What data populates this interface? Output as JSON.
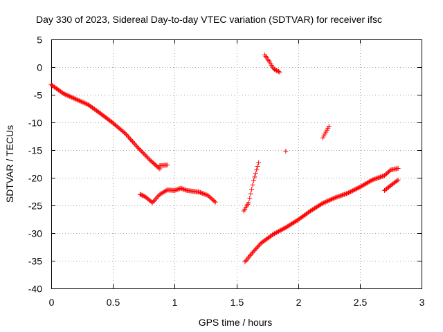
{
  "chart_data": {
    "type": "scatter",
    "title": "Day 330 of 2023, Sidereal Day-to-day VTEC variation (SDTVAR) for receiver ifsc",
    "xlabel": "GPS time / hours",
    "ylabel": "SDTVAR / TECUs",
    "xlim": [
      0,
      3
    ],
    "ylim": [
      -40,
      5
    ],
    "xticks": [
      "0",
      "0.5",
      "1",
      "1.5",
      "2",
      "2.5",
      "3"
    ],
    "yticks": [
      "5",
      "0",
      "-5",
      "-10",
      "-15",
      "-20",
      "-25",
      "-30",
      "-35",
      "-40"
    ],
    "grid": true,
    "marker": "+",
    "color": "#ff0000",
    "segments": [
      {
        "points": [
          [
            0.0,
            -3.2
          ],
          [
            0.1,
            -4.8
          ],
          [
            0.2,
            -5.8
          ],
          [
            0.3,
            -6.8
          ],
          [
            0.4,
            -8.4
          ],
          [
            0.5,
            -10.1
          ],
          [
            0.6,
            -12.0
          ],
          [
            0.7,
            -14.5
          ],
          [
            0.8,
            -16.8
          ],
          [
            0.88,
            -18.4
          ]
        ],
        "step": 0.0083
      },
      {
        "points": [
          [
            0.88,
            -17.8
          ],
          [
            0.94,
            -17.7
          ]
        ],
        "step": 0.0083
      },
      {
        "points": [
          [
            0.72,
            -23.0
          ],
          [
            0.76,
            -23.4
          ],
          [
            0.82,
            -24.5
          ],
          [
            0.88,
            -23.0
          ],
          [
            0.94,
            -22.2
          ],
          [
            1.0,
            -22.3
          ],
          [
            1.05,
            -21.9
          ],
          [
            1.1,
            -22.3
          ],
          [
            1.2,
            -22.6
          ],
          [
            1.27,
            -23.2
          ],
          [
            1.33,
            -24.4
          ]
        ],
        "step": 0.0083
      },
      {
        "points": [
          [
            1.56,
            -26.0
          ],
          [
            1.6,
            -24.5
          ],
          [
            1.64,
            -20.5
          ],
          [
            1.68,
            -17.3
          ]
        ],
        "step": 0.0083
      },
      {
        "points": [
          [
            1.73,
            2.2
          ],
          [
            1.77,
            0.9
          ],
          [
            1.8,
            -0.3
          ],
          [
            1.85,
            -0.9
          ]
        ],
        "step": 0.0083
      },
      {
        "points": [
          [
            1.9,
            -15.2
          ]
        ],
        "step": 0.0083
      },
      {
        "points": [
          [
            2.2,
            -12.8
          ],
          [
            2.25,
            -10.7
          ]
        ],
        "step": 0.0083
      },
      {
        "points": [
          [
            1.57,
            -35.2
          ],
          [
            1.62,
            -33.8
          ],
          [
            1.7,
            -31.8
          ],
          [
            1.8,
            -30.2
          ],
          [
            1.9,
            -29.0
          ],
          [
            2.0,
            -27.6
          ],
          [
            2.1,
            -26.0
          ],
          [
            2.2,
            -24.6
          ],
          [
            2.3,
            -23.6
          ],
          [
            2.4,
            -22.8
          ],
          [
            2.5,
            -21.7
          ],
          [
            2.6,
            -20.4
          ],
          [
            2.7,
            -19.6
          ],
          [
            2.75,
            -18.6
          ],
          [
            2.81,
            -18.3
          ]
        ],
        "step": 0.0083
      },
      {
        "points": [
          [
            2.7,
            -22.3
          ],
          [
            2.75,
            -21.4
          ],
          [
            2.81,
            -20.4
          ]
        ],
        "step": 0.0083
      }
    ]
  }
}
